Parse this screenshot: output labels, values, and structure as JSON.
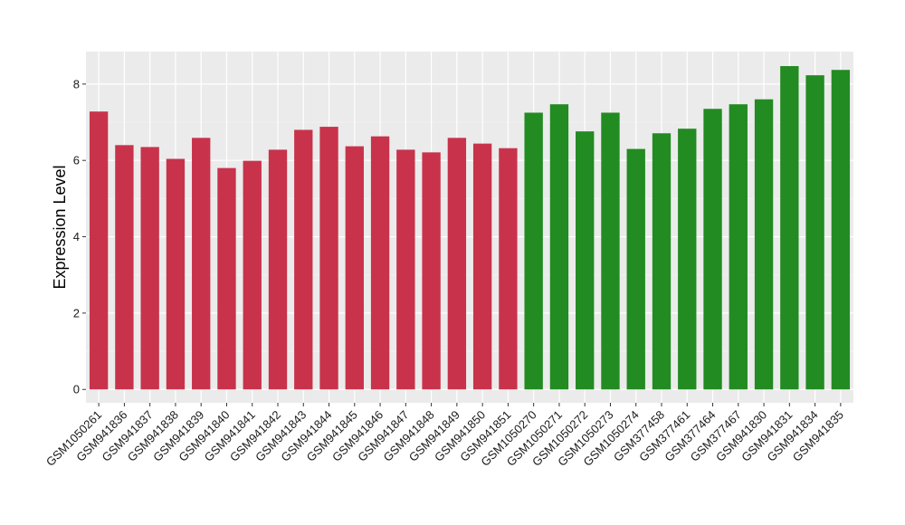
{
  "chart_data": {
    "type": "bar",
    "title": "",
    "xlabel": "",
    "ylabel": "Expression Level",
    "ylim": [
      -0.35,
      8.85
    ],
    "yticks": [
      0,
      2,
      4,
      6,
      8
    ],
    "grid": true,
    "categories": [
      "GSM1050261",
      "GSM941836",
      "GSM941837",
      "GSM941838",
      "GSM941839",
      "GSM941840",
      "GSM941841",
      "GSM941842",
      "GSM941843",
      "GSM941844",
      "GSM941845",
      "GSM941846",
      "GSM941847",
      "GSM941848",
      "GSM941849",
      "GSM941850",
      "GSM941851",
      "GSM1050270",
      "GSM1050271",
      "GSM1050272",
      "GSM1050273",
      "GSM1050274",
      "GSM377458",
      "GSM377461",
      "GSM377464",
      "GSM377467",
      "GSM941830",
      "GSM941831",
      "GSM941834",
      "GSM941835"
    ],
    "values": [
      7.28,
      6.4,
      6.35,
      6.04,
      6.59,
      5.8,
      5.99,
      6.28,
      6.8,
      6.88,
      6.37,
      6.63,
      6.28,
      6.21,
      6.59,
      6.44,
      6.32,
      7.25,
      7.47,
      6.76,
      7.25,
      6.3,
      6.71,
      6.83,
      7.35,
      7.47,
      7.6,
      8.47,
      8.23,
      8.37
    ],
    "groups": [
      0,
      0,
      0,
      0,
      0,
      0,
      0,
      0,
      0,
      0,
      0,
      0,
      0,
      0,
      0,
      0,
      0,
      1,
      1,
      1,
      1,
      1,
      1,
      1,
      1,
      1,
      1,
      1,
      1,
      1
    ],
    "colors": {
      "group_0": "#c8334b",
      "group_1": "#228b22",
      "panel": "#ebebeb",
      "grid_major": "#ffffff",
      "grid_minor": "#f4f4f4"
    }
  }
}
